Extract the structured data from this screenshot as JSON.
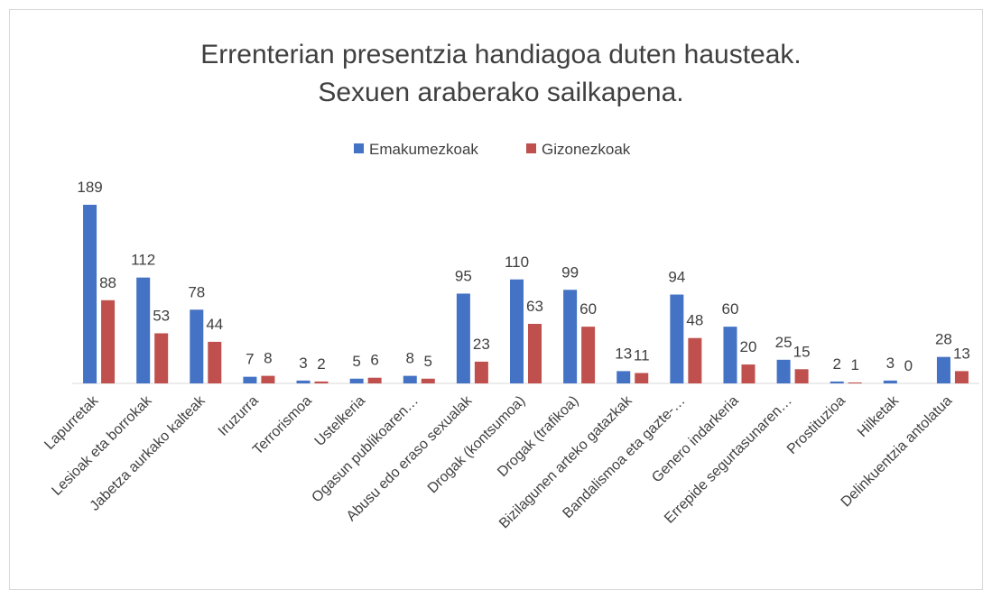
{
  "chart_data": {
    "type": "bar",
    "title": [
      "Errenterian presentzia handiagoa duten hausteak.",
      "Sexuen araberako sailkapena."
    ],
    "categories": [
      "Lapurretak",
      "Lesioak eta borrokak",
      "Jabetza aurkako kalteak",
      "Iruzurra",
      "Terrorismoa",
      "Ustelkeria",
      "Ogasun publikoaren…",
      "Abusu edo eraso sexualak",
      "Drogak (kontsumoa)",
      "Drogak (trafikoa)",
      "Bizilagunen arteko gatazkak",
      "Bandalismoa eta gazte-…",
      "Genero indarkeria",
      "Errepide segurtasunaren…",
      "Prostituzioa",
      "Hilketak",
      "Delinkuentzia antolatua"
    ],
    "series": [
      {
        "name": "Emakumezkoak",
        "color": "#4472c4",
        "values": [
          189,
          112,
          78,
          7,
          3,
          5,
          8,
          95,
          110,
          99,
          13,
          94,
          60,
          25,
          2,
          3,
          28
        ]
      },
      {
        "name": "Gizonezkoak",
        "color": "#c0504d",
        "values": [
          88,
          53,
          44,
          8,
          2,
          6,
          5,
          23,
          63,
          60,
          11,
          48,
          20,
          15,
          1,
          0,
          13
        ]
      }
    ],
    "legend": "top"
  }
}
